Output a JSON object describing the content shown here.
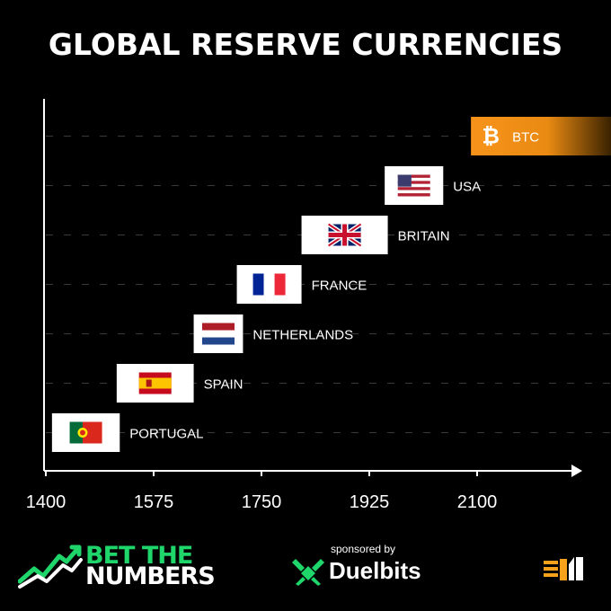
{
  "title": "GLOBAL RESERVE CURRENCIES",
  "chart_data": {
    "type": "bar",
    "orientation": "horizontal-timeline",
    "x_ticks": [
      1400,
      1575,
      1750,
      1925,
      2100
    ],
    "xlim": [
      1400,
      2300
    ],
    "grid": true,
    "series": [
      {
        "label": "PORTUGAL",
        "start": 1410,
        "end": 1520,
        "icon": "portugal-flag-icon"
      },
      {
        "label": "SPAIN",
        "start": 1515,
        "end": 1640,
        "icon": "spain-flag-icon"
      },
      {
        "label": "NETHERLANDS",
        "start": 1640,
        "end": 1720,
        "icon": "netherlands-flag-icon"
      },
      {
        "label": "FRANCE",
        "start": 1710,
        "end": 1815,
        "icon": "france-flag-icon"
      },
      {
        "label": "BRITAIN",
        "start": 1815,
        "end": 1955,
        "icon": "britain-flag-icon"
      },
      {
        "label": "USA",
        "start": 1950,
        "end": 2045,
        "icon": "usa-flag-icon"
      },
      {
        "label": "BTC",
        "start": 2090,
        "end": 2400,
        "icon": "bitcoin-icon",
        "color": "#f7931a"
      }
    ]
  },
  "footer": {
    "brand_line1": "BET THE",
    "brand_line2": "NUMBERS",
    "sponsored_label": "sponsored by",
    "sponsor_name": "Duelbits"
  },
  "colors": {
    "background": "#000000",
    "btc": "#f7931a",
    "brand_green": "#1fd66b"
  }
}
